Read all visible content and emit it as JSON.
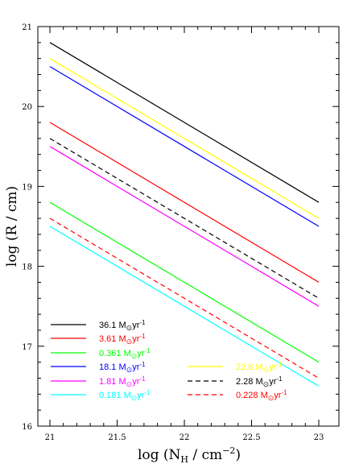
{
  "chart_data": {
    "type": "line",
    "xlabel": "log (N_H / cm^-2)",
    "ylabel": "log (R / cm)",
    "xlim": [
      21,
      23
    ],
    "ylim": [
      16,
      21
    ],
    "x_ticks": [
      "21",
      "21.5",
      "22",
      "22.5",
      "23"
    ],
    "y_ticks": [
      "16",
      "17",
      "18",
      "19",
      "20",
      "21"
    ],
    "grid": false,
    "legend_position": "bottom-left",
    "series": [
      {
        "name": "36.1",
        "color": "#000000",
        "dash": "solid",
        "x": [
          21,
          23
        ],
        "y": [
          20.8,
          18.8
        ]
      },
      {
        "name": "22.8",
        "color": "#ffff00",
        "dash": "solid",
        "x": [
          21,
          23
        ],
        "y": [
          20.6,
          18.6
        ]
      },
      {
        "name": "18.1",
        "color": "#0000ff",
        "dash": "solid",
        "x": [
          21,
          23
        ],
        "y": [
          20.5,
          18.5
        ]
      },
      {
        "name": "3.61",
        "color": "#ff0000",
        "dash": "solid",
        "x": [
          21,
          23
        ],
        "y": [
          19.8,
          17.8
        ]
      },
      {
        "name": "2.28",
        "color": "#000000",
        "dash": "dashed",
        "x": [
          21,
          23
        ],
        "y": [
          19.6,
          17.6
        ]
      },
      {
        "name": "1.81",
        "color": "#ff00ff",
        "dash": "solid",
        "x": [
          21,
          23
        ],
        "y": [
          19.5,
          17.5
        ]
      },
      {
        "name": "0.361",
        "color": "#00ff00",
        "dash": "solid",
        "x": [
          21,
          23
        ],
        "y": [
          18.8,
          16.8
        ]
      },
      {
        "name": "0.228",
        "color": "#ff0000",
        "dash": "dashed",
        "x": [
          21,
          23
        ],
        "y": [
          18.6,
          16.6
        ]
      },
      {
        "name": "0.181",
        "color": "#00ffff",
        "dash": "solid",
        "x": [
          21,
          23
        ],
        "y": [
          18.5,
          16.5
        ]
      }
    ],
    "legend_unit": "M",
    "legend_unit_sub": "⊙",
    "legend_unit_suffix": "yr",
    "legend_unit_sup": "-1"
  }
}
